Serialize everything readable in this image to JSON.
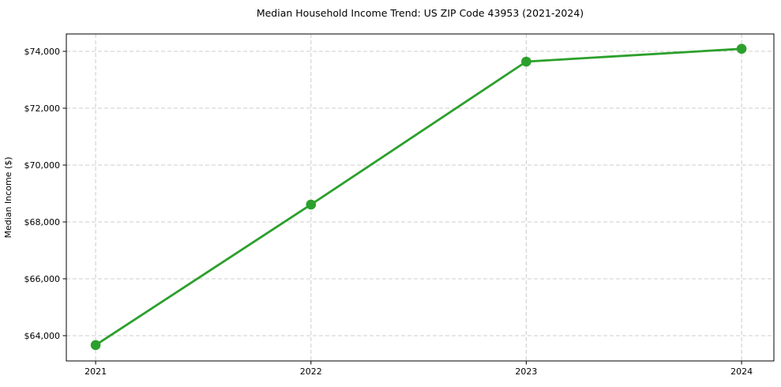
{
  "chart_data": {
    "type": "line",
    "title": "Median Household Income Trend: US ZIP Code 43953 (2021-2024)",
    "xlabel": "",
    "ylabel": "Median Income ($)",
    "x": [
      2021,
      2022,
      2023,
      2024
    ],
    "xtick_labels": [
      "2021",
      "2022",
      "2023",
      "2024"
    ],
    "values": [
      63670,
      68610,
      73640,
      74090
    ],
    "yticks": [
      64000,
      66000,
      68000,
      70000,
      72000,
      74000
    ],
    "ytick_labels": [
      "$64,000",
      "$66,000",
      "$68,000",
      "$70,000",
      "$72,000",
      "$74,000"
    ],
    "xlim": [
      2020.864,
      2024.15
    ],
    "ylim": [
      63111,
      74611
    ],
    "grid": true,
    "grid_line_style": "dashed",
    "grid_color": "#cccccc",
    "axis_color": "#000000",
    "line_color": "#2ca02c",
    "marker": "circle",
    "legend": false
  }
}
